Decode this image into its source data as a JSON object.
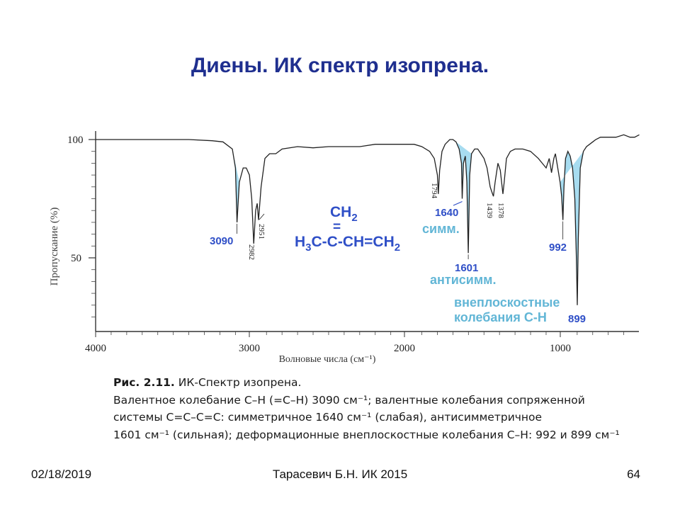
{
  "slide": {
    "title": "Диены. ИК спектр изопрена."
  },
  "chart_data": {
    "type": "line",
    "xlabel": "Волновые числа (см⁻¹)",
    "ylabel": "Пропускание (%)",
    "xlim": [
      4000,
      500
    ],
    "ylim": [
      20,
      105
    ],
    "x_ticks": [
      "4000",
      "3000",
      "2000",
      "1000"
    ],
    "y_ticks": [
      "100",
      "50"
    ],
    "grid": false,
    "x": [
      4000,
      3800,
      3600,
      3400,
      3250,
      3180,
      3120,
      3100,
      3090,
      3075,
      3050,
      3030,
      3010,
      2995,
      2982,
      2970,
      2960,
      2951,
      2935,
      2910,
      2880,
      2840,
      2800,
      2700,
      2600,
      2500,
      2400,
      2300,
      2200,
      2100,
      2000,
      1950,
      1900,
      1850,
      1820,
      1800,
      1794,
      1785,
      1770,
      1750,
      1720,
      1700,
      1680,
      1660,
      1645,
      1640,
      1632,
      1620,
      1610,
      1601,
      1592,
      1580,
      1560,
      1540,
      1520,
      1500,
      1480,
      1460,
      1450,
      1439,
      1428,
      1410,
      1395,
      1385,
      1378,
      1370,
      1355,
      1330,
      1300,
      1250,
      1200,
      1150,
      1100,
      1080,
      1065,
      1050,
      1040,
      1030,
      1010,
      1000,
      992,
      985,
      975,
      960,
      945,
      930,
      915,
      905,
      899,
      893,
      880,
      860,
      840,
      820,
      800,
      780,
      750,
      700,
      650,
      600,
      560,
      530,
      500
    ],
    "series": [
      {
        "values": [
          100,
          100,
          100,
          100,
          99.5,
          99,
          96,
          88,
          65,
          82,
          88,
          88,
          85,
          75,
          56,
          70,
          73,
          66,
          80,
          92,
          94,
          94,
          96,
          97,
          96.5,
          97,
          97,
          97,
          98,
          98,
          98,
          98,
          97,
          95,
          92,
          85,
          77,
          87,
          95,
          98,
          100,
          100,
          99,
          96,
          90,
          75,
          90,
          93,
          82,
          52,
          85,
          94,
          96,
          96,
          94,
          92,
          88,
          80,
          78,
          76,
          82,
          90,
          87,
          81,
          77,
          82,
          92,
          95,
          96,
          96,
          95,
          92,
          88,
          92,
          86,
          92,
          94,
          90,
          82,
          76,
          66,
          80,
          92,
          95,
          93,
          88,
          75,
          50,
          30,
          58,
          88,
          95,
          97,
          98,
          99,
          100,
          101,
          101,
          101,
          102,
          101,
          101,
          102
        ]
      }
    ],
    "shaded_regions": [
      [
        3120,
        3060
      ],
      [
        1700,
        1580
      ],
      [
        1010,
        850
      ]
    ],
    "peak_labels": [
      {
        "x": 3090,
        "text": "3090",
        "style": "blue"
      },
      {
        "x": 2982,
        "text": "2982",
        "style": "rotated"
      },
      {
        "x": 2951,
        "text": "2951",
        "style": "rotated"
      },
      {
        "x": 1794,
        "text": "1794",
        "style": "rotated"
      },
      {
        "x": 1640,
        "text": "1640",
        "style": "blue"
      },
      {
        "x": 1601,
        "text": "1601",
        "style": "blue"
      },
      {
        "x": 1439,
        "text": "1439",
        "style": "rotated"
      },
      {
        "x": 1378,
        "text": "1378",
        "style": "rotated"
      },
      {
        "x": 992,
        "text": "992",
        "style": "blue"
      },
      {
        "x": 899,
        "text": "899",
        "style": "blue"
      }
    ],
    "annotations": {
      "symm": "симм.",
      "antisymm": "антисимм.",
      "oop1": "внеплоскостные",
      "oop2": "колебания С-Н"
    },
    "structure": {
      "top_ch": "CH",
      "top_sub": "2",
      "bond": "=",
      "h": "H",
      "h_sub": "3",
      "chain": "C-C-CH=CH",
      "end_sub": "2"
    }
  },
  "caption": {
    "fig_label": "Рис. 2.11.",
    "fig_title": " ИК-Спектр изопрена.",
    "lines": [
      "Валентное колебание С–Н (=С–Н) 3090 см⁻¹; валентные колебания сопряженной",
      "системы С=С–С=С: симметричное 1640 см⁻¹ (слабая), антисимметричное",
      "1601 см⁻¹ (сильная); деформационные внеплоскостные колебания С–Н: 992 и 899 см⁻¹"
    ]
  },
  "footer": {
    "date": "02/18/2019",
    "author": "Тарасевич Б.Н.  ИК 2015",
    "page": "64"
  },
  "colors": {
    "title": "#1f2f8f",
    "label_blue": "#2f4fc7",
    "annotation_cyan": "#62b6d6",
    "fill": "#a7dcf0",
    "axis": "#333333"
  }
}
